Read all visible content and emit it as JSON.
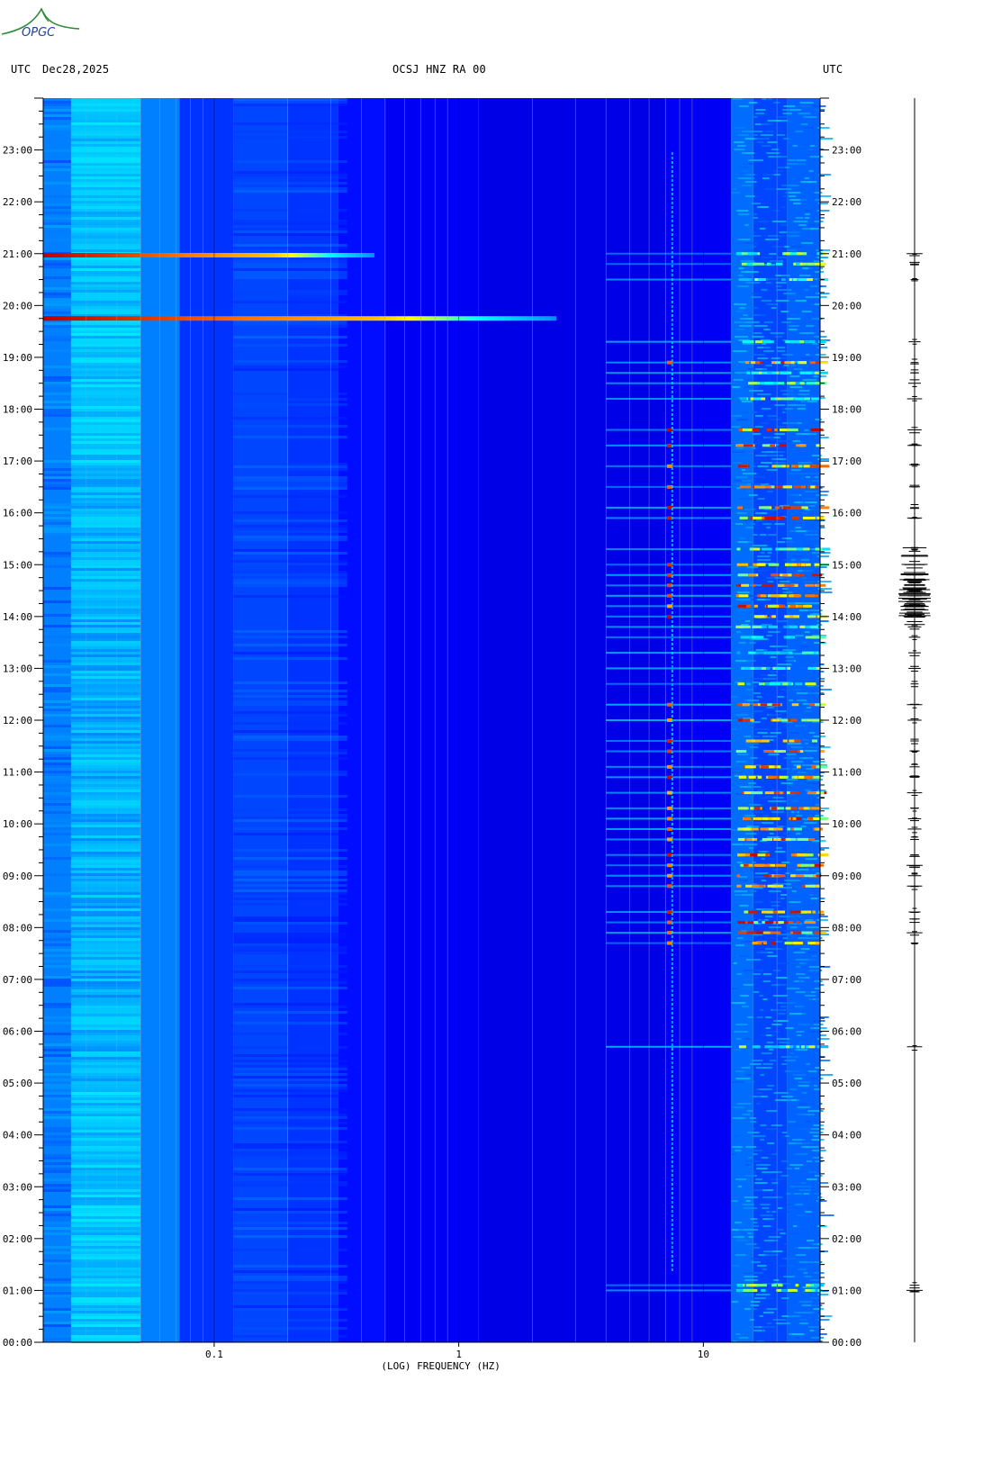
{
  "header": {
    "left_tz": "UTC",
    "date": "Dec28,2025",
    "station": "OCSJ HNZ RA 00",
    "right_tz": "UTC",
    "logo_text": "OPGC"
  },
  "chart_data": {
    "type": "heatmap",
    "title": "OCSJ HNZ RA 00",
    "xlabel": "(LOG) FREQUENCY (HZ)",
    "x_scale": "log",
    "xlim": [
      0.02,
      30
    ],
    "x_ticks": [
      {
        "value": 0.1,
        "label": "0.1"
      },
      {
        "value": 1,
        "label": "1"
      },
      {
        "value": 10,
        "label": "10"
      }
    ],
    "y_ticks_hours": [
      "00:00",
      "01:00",
      "02:00",
      "03:00",
      "04:00",
      "05:00",
      "06:00",
      "07:00",
      "08:00",
      "09:00",
      "10:00",
      "11:00",
      "12:00",
      "13:00",
      "14:00",
      "15:00",
      "16:00",
      "17:00",
      "18:00",
      "19:00",
      "20:00",
      "21:00",
      "22:00",
      "23:00"
    ],
    "ylim_hours": [
      0,
      24
    ],
    "grid": true,
    "colormap": [
      "#00008c",
      "#0000ff",
      "#00a0ff",
      "#00ffff",
      "#ffff00",
      "#ff8000",
      "#c00000"
    ],
    "strong_events": [
      {
        "time_hours": 19.75,
        "fmin": 0.02,
        "fmax": 2.5,
        "peak_fmax": 0.45
      },
      {
        "time_hours": 20.97,
        "fmin": 0.02,
        "fmax": 0.45,
        "peak_fmax": 0.17
      }
    ],
    "activity_bands_hours": [
      1.0,
      1.1,
      5.7,
      7.7,
      7.9,
      8.1,
      8.3,
      8.8,
      9.0,
      9.2,
      9.4,
      9.7,
      9.9,
      10.1,
      10.3,
      10.6,
      10.9,
      11.1,
      11.4,
      11.6,
      12.0,
      12.3,
      12.7,
      13.0,
      13.3,
      13.6,
      13.8,
      14.0,
      14.2,
      14.4,
      14.6,
      14.8,
      15.0,
      15.3,
      15.9,
      16.1,
      16.5,
      16.9,
      17.3,
      17.6,
      18.2,
      18.5,
      18.7,
      18.9,
      19.3,
      20.5,
      20.8,
      21.0
    ]
  }
}
